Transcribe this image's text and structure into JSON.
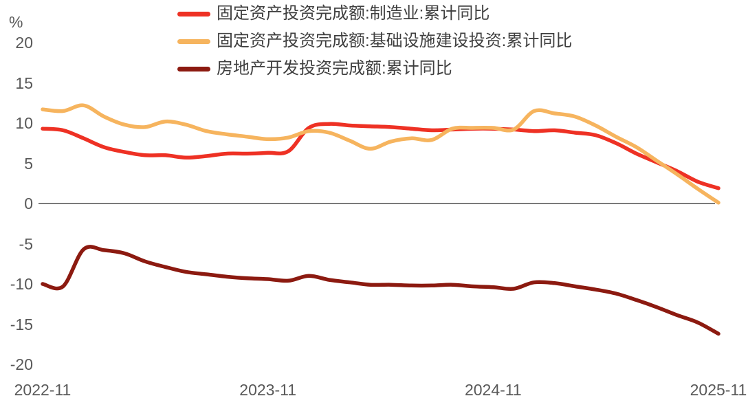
{
  "chart_data": {
    "type": "line",
    "unit_label": "%",
    "x": [
      "2022-11",
      "2022-12",
      "2023-02",
      "2023-03",
      "2023-04",
      "2023-05",
      "2023-06",
      "2023-07",
      "2023-08",
      "2023-09",
      "2023-10",
      "2023-11",
      "2023-12",
      "2024-02",
      "2024-03",
      "2024-04",
      "2024-05",
      "2024-06",
      "2024-07",
      "2024-08",
      "2024-09",
      "2024-10",
      "2024-11",
      "2024-12",
      "2025-02",
      "2025-03",
      "2025-04",
      "2025-05",
      "2025-06",
      "2025-07",
      "2025-08",
      "2025-09",
      "2025-10",
      "2025-11"
    ],
    "series": [
      {
        "name": "固定资产投资完成额:制造业:累计同比",
        "color": "#ee3124",
        "values": [
          9.3,
          9.1,
          8.1,
          7.0,
          6.4,
          6.0,
          6.0,
          5.7,
          5.9,
          6.2,
          6.2,
          6.3,
          6.5,
          9.4,
          9.9,
          9.7,
          9.6,
          9.5,
          9.3,
          9.1,
          9.2,
          9.3,
          9.3,
          9.2,
          9.0,
          9.1,
          8.8,
          8.5,
          7.5,
          6.2,
          5.1,
          4.0,
          2.7,
          1.9
        ]
      },
      {
        "name": "固定资产投资完成额:基础设施建设投资:累计同比",
        "color": "#f6b45e",
        "values": [
          11.7,
          11.5,
          12.2,
          10.8,
          9.8,
          9.5,
          10.2,
          9.8,
          9.0,
          8.6,
          8.3,
          8.0,
          8.2,
          9.0,
          8.8,
          7.8,
          6.8,
          7.7,
          8.1,
          7.9,
          9.3,
          9.4,
          9.4,
          9.2,
          11.5,
          11.2,
          10.8,
          9.7,
          8.3,
          7.0,
          5.3,
          3.6,
          1.8,
          0.1
        ]
      },
      {
        "name": "房地产开发投资完成额:累计同比",
        "color": "#8c1a10",
        "values": [
          -10.0,
          -10.3,
          -5.7,
          -5.8,
          -6.2,
          -7.2,
          -7.9,
          -8.5,
          -8.8,
          -9.1,
          -9.3,
          -9.4,
          -9.6,
          -9.0,
          -9.5,
          -9.8,
          -10.1,
          -10.1,
          -10.2,
          -10.2,
          -10.1,
          -10.3,
          -10.4,
          -10.6,
          -9.8,
          -9.9,
          -10.3,
          -10.7,
          -11.2,
          -12.0,
          -12.9,
          -13.9,
          -14.8,
          -16.2
        ]
      }
    ],
    "ylim": [
      -20,
      20
    ],
    "yticks": [
      20,
      15,
      10,
      5,
      0,
      -5,
      -10,
      -15,
      -20
    ],
    "x_tick_labels": [
      "2022-11",
      "2023-11",
      "2024-11",
      "2025-11"
    ],
    "x_tick_indices": [
      0,
      11,
      22,
      33
    ],
    "grid": false,
    "legend_position": "top-center",
    "axis_line_color": "#7a7a7a",
    "tick_text_color": "#595959",
    "legend_text_color": "#3f3f3f",
    "background_color": "#ffffff"
  }
}
